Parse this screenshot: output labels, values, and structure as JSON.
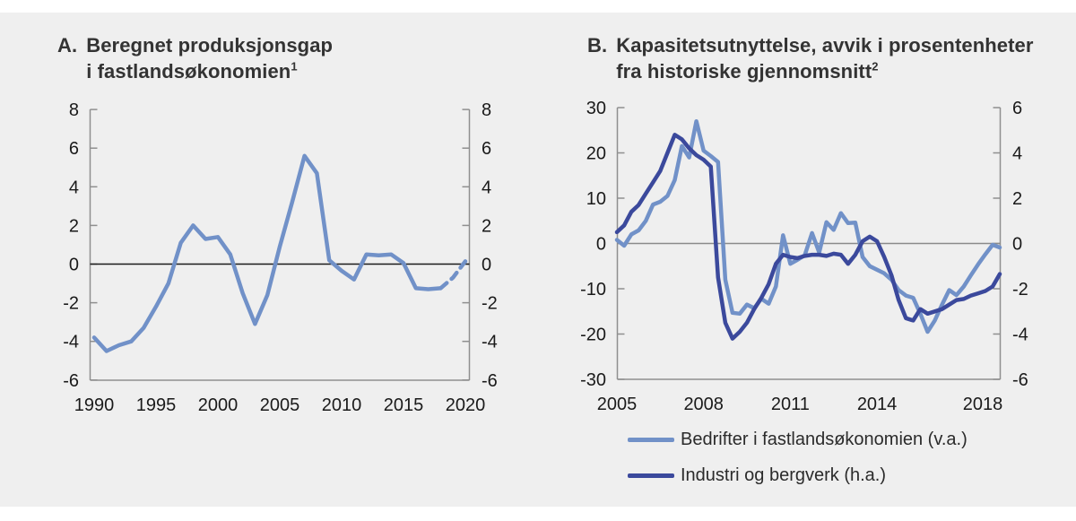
{
  "figure": {
    "background_color": "#efefef",
    "accent_light_blue": "#7191c8",
    "accent_dark_blue": "#3b499c"
  },
  "titles": {
    "a": {
      "prefix": "A.",
      "line1": "Beregnet produksjonsgap",
      "line2": "i fastlandsøkonomien",
      "footnote_mark": "1"
    },
    "b": {
      "prefix": "B.",
      "line1": "Kapasitetsutnyttelse, avvik i prosentenheter",
      "line2": "fra historiske gjennomsnitt",
      "footnote_mark": "2"
    }
  },
  "legend": {
    "items": [
      {
        "label": "Bedrifter i fastlandsøkonomien (v.a.)",
        "color": "#7191c8"
      },
      {
        "label": "Industri og bergverk (h.a.)",
        "color": "#3b499c"
      }
    ]
  },
  "chart_data": [
    {
      "id": "A",
      "type": "line",
      "title": "Beregnet produksjonsgap i fastlandsøkonomien¹",
      "xlim": [
        1990,
        2020
      ],
      "ylim": [
        -6,
        8
      ],
      "y_ticks": [
        8,
        6,
        4,
        2,
        0,
        -2,
        -4,
        -6
      ],
      "y_ticks_right": [
        8,
        6,
        4,
        2,
        0,
        -2,
        -4,
        -6
      ],
      "x_ticks": [
        1990,
        1995,
        2000,
        2005,
        2010,
        2015,
        2020
      ],
      "zero_line": true,
      "grid": false,
      "series": [
        {
          "name": "Produksjonsgap",
          "style": "solid",
          "color": "#7191c8",
          "x_start": 1990,
          "x_step": 1,
          "values": [
            -3.8,
            -4.5,
            -4.2,
            -4.0,
            -3.3,
            -2.2,
            -1.0,
            1.1,
            2.0,
            1.3,
            1.4,
            0.5,
            -1.5,
            -3.1,
            -1.6,
            0.9,
            3.2,
            5.6,
            4.7,
            0.2,
            -0.35,
            -0.8,
            0.5,
            0.45,
            0.5,
            0.05,
            -1.25,
            -1.3,
            -1.25
          ]
        },
        {
          "name": "Produksjonsgap anslag",
          "style": "dashed",
          "color": "#7191c8",
          "x_start": 2018,
          "x_step": 1,
          "values": [
            -1.25,
            -0.7,
            0.15
          ]
        }
      ]
    },
    {
      "id": "B",
      "type": "line",
      "title": "Kapasitetsutnyttelse, avvik i prosentenheter fra historiske gjennomsnitt²",
      "xlim": [
        2005,
        2018.25
      ],
      "left_ylim": [
        -30,
        30
      ],
      "right_ylim": [
        -6,
        6
      ],
      "left_y_ticks": [
        30,
        20,
        10,
        0,
        -10,
        -20,
        -30
      ],
      "right_y_ticks": [
        6,
        4,
        2,
        0,
        -2,
        -4,
        -6
      ],
      "x_ticks": [
        2005,
        2008,
        2011,
        2014,
        2018
      ],
      "zero_line": true,
      "grid": false,
      "series": [
        {
          "name": "Bedrifter i fastlandsøkonomien (v.a.)",
          "axis": "left",
          "style": "solid",
          "color": "#7191c8",
          "x_start": 2005,
          "x_step": 0.25,
          "values": [
            0.8,
            -0.5,
            2.0,
            2.9,
            5.0,
            8.6,
            9.2,
            10.5,
            14.0,
            21.5,
            19.0,
            27.0,
            20.5,
            19.3,
            18.0,
            -8.0,
            -15.3,
            -15.5,
            -13.5,
            -14.3,
            -12.2,
            -13.3,
            -9.5,
            1.8,
            -4.5,
            -3.6,
            -2.6,
            2.3,
            -2.0,
            4.7,
            3.0,
            6.7,
            4.5,
            4.6,
            -3.0,
            -5.0,
            -5.8,
            -6.6,
            -8.0,
            -10.3,
            -11.5,
            -12.0,
            -15.5,
            -19.5,
            -17.0,
            -13.5,
            -10.3,
            -11.4,
            -9.5,
            -7.0,
            -4.6,
            -2.4,
            -0.3,
            -0.9
          ]
        },
        {
          "name": "Industri og bergverk (h.a.)",
          "axis": "right",
          "style": "solid",
          "color": "#3b499c",
          "x_start": 2005,
          "x_step": 0.25,
          "values": [
            0.5,
            0.8,
            1.4,
            1.7,
            2.2,
            2.7,
            3.2,
            4.0,
            4.8,
            4.6,
            4.2,
            3.9,
            3.7,
            3.4,
            -1.5,
            -3.5,
            -4.2,
            -3.9,
            -3.5,
            -2.9,
            -2.4,
            -1.8,
            -0.9,
            -0.5,
            -0.6,
            -0.65,
            -0.55,
            -0.5,
            -0.5,
            -0.55,
            -0.45,
            -0.5,
            -0.9,
            -0.5,
            0.1,
            0.3,
            0.1,
            -0.6,
            -1.4,
            -2.5,
            -3.3,
            -3.4,
            -2.9,
            -3.1,
            -3.0,
            -2.9,
            -2.7,
            -2.5,
            -2.45,
            -2.3,
            -2.2,
            -2.1,
            -1.9,
            -1.35
          ]
        }
      ]
    }
  ]
}
